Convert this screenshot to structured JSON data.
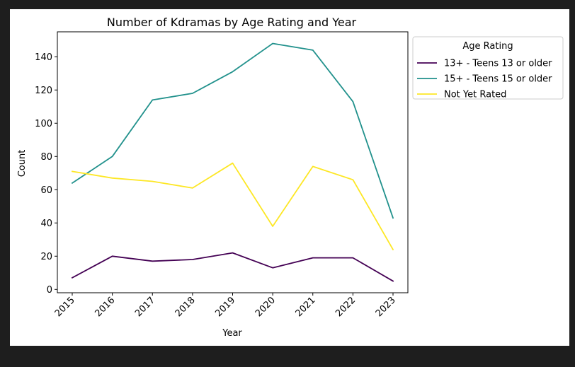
{
  "chart_data": {
    "type": "line",
    "title": "Number of Kdramas by Age Rating and Year",
    "xlabel": "Year",
    "ylabel": "Count",
    "x": [
      "2015",
      "2016",
      "2017",
      "2018",
      "2019",
      "2020",
      "2021",
      "2022",
      "2023"
    ],
    "ylim": [
      -2,
      155
    ],
    "yticks": [
      0,
      20,
      40,
      60,
      80,
      100,
      120,
      140
    ],
    "grid": false,
    "legend": {
      "title": "Age Rating",
      "placement": "outside-top-right"
    },
    "series": [
      {
        "name": "13+ - Teens 13 or older",
        "color": "#440154",
        "values": [
          7,
          20,
          17,
          18,
          22,
          13,
          19,
          19,
          5
        ]
      },
      {
        "name": "15+ - Teens 15 or older",
        "color": "#21918c",
        "values": [
          64,
          80,
          114,
          118,
          131,
          148,
          144,
          113,
          43
        ]
      },
      {
        "name": "Not Yet Rated",
        "color": "#fde725",
        "values": [
          71,
          67,
          65,
          61,
          76,
          38,
          74,
          66,
          24
        ]
      }
    ]
  }
}
